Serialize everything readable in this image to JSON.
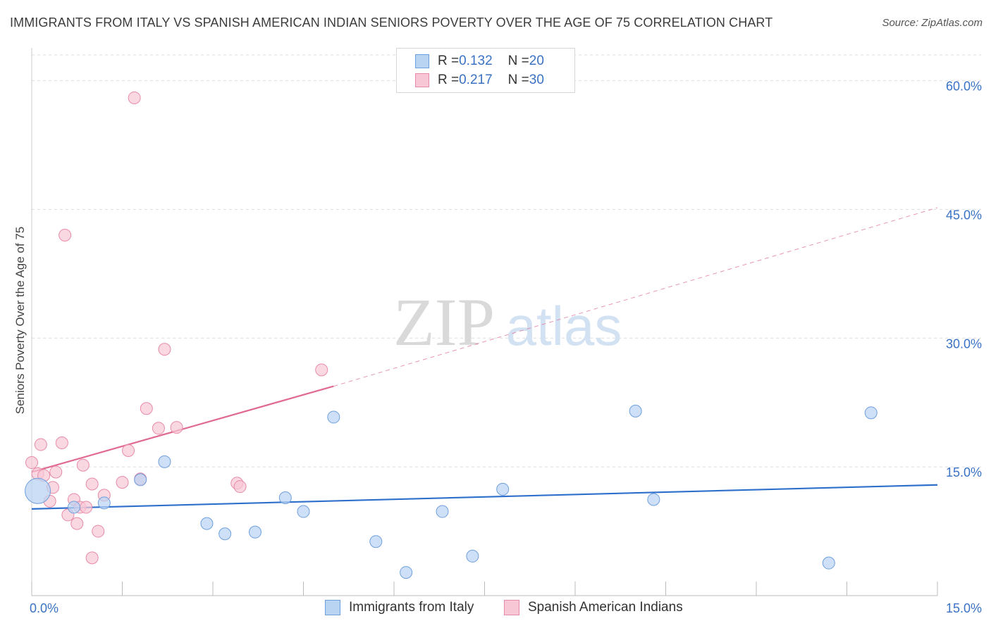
{
  "title": "IMMIGRANTS FROM ITALY VS SPANISH AMERICAN INDIAN SENIORS POVERTY OVER THE AGE OF 75 CORRELATION CHART",
  "source": "Source: ZipAtlas.com",
  "watermark": {
    "zip": "ZIP",
    "atlas": "atlas"
  },
  "legend": {
    "rows": [
      {
        "r_label": "R = ",
        "r_value": "0.132",
        "n_label": "N = ",
        "n_value": "20"
      },
      {
        "r_label": "R = ",
        "r_value": "0.217",
        "n_label": "N = ",
        "n_value": "30"
      }
    ]
  },
  "colors": {
    "blue_fill": "#b9d3f3",
    "blue_stroke": "#6f9fdc",
    "blue_line": "#2f6fcc",
    "pink_fill": "#f8c7d6",
    "pink_stroke": "#e88ba8",
    "pink_line": "#e06a92",
    "tick_label": "#3a72c4",
    "grid": "#dddddd"
  },
  "chart_data": {
    "type": "scatter",
    "title": "IMMIGRANTS FROM ITALY VS SPANISH AMERICAN INDIAN SENIORS POVERTY OVER THE AGE OF 75 CORRELATION CHART",
    "xlabel": "",
    "ylabel": "Seniors Poverty Over the Age of 75",
    "xlim": [
      0,
      15
    ],
    "ylim": [
      0,
      63
    ],
    "x_ticks": [
      0,
      15
    ],
    "x_tick_labels": [
      "0.0%",
      "15.0%"
    ],
    "y_ticks": [
      15,
      30,
      45,
      60
    ],
    "y_tick_labels": [
      "15.0%",
      "30.0%",
      "45.0%",
      "60.0%"
    ],
    "grid": true,
    "legend_position": "bottom-center",
    "series": [
      {
        "name": "Immigrants from Italy",
        "color": "#6f9fdc",
        "points": [
          [
            0.1,
            12.2,
            "large"
          ],
          [
            0.7,
            10.3
          ],
          [
            1.2,
            10.8
          ],
          [
            1.8,
            13.5
          ],
          [
            2.2,
            15.6
          ],
          [
            2.9,
            8.4
          ],
          [
            3.2,
            7.2
          ],
          [
            3.7,
            7.4
          ],
          [
            4.2,
            11.4
          ],
          [
            4.5,
            9.8
          ],
          [
            5.0,
            20.8
          ],
          [
            5.7,
            6.3
          ],
          [
            6.2,
            2.7
          ],
          [
            6.8,
            9.8
          ],
          [
            7.3,
            4.6
          ],
          [
            7.8,
            12.4
          ],
          [
            10.0,
            21.5
          ],
          [
            10.3,
            11.2
          ],
          [
            13.2,
            3.8
          ],
          [
            13.9,
            21.3
          ]
        ],
        "trend": {
          "x": [
            0,
            15
          ],
          "y": [
            10.1,
            12.9
          ]
        }
      },
      {
        "name": "Spanish American Indians",
        "color": "#e88ba8",
        "points": [
          [
            0.0,
            15.5
          ],
          [
            0.1,
            14.2
          ],
          [
            0.15,
            17.6
          ],
          [
            0.2,
            14.0
          ],
          [
            0.3,
            11.0
          ],
          [
            0.35,
            12.6
          ],
          [
            0.4,
            14.4
          ],
          [
            0.5,
            17.8
          ],
          [
            0.55,
            42.0
          ],
          [
            0.6,
            9.4
          ],
          [
            0.7,
            11.2
          ],
          [
            0.75,
            8.4
          ],
          [
            0.8,
            10.3
          ],
          [
            0.85,
            15.2
          ],
          [
            0.9,
            10.3
          ],
          [
            1.0,
            13.0
          ],
          [
            1.0,
            4.4
          ],
          [
            1.1,
            7.5
          ],
          [
            1.2,
            11.7
          ],
          [
            1.5,
            13.2
          ],
          [
            1.6,
            16.9
          ],
          [
            1.7,
            58.0
          ],
          [
            1.8,
            13.6
          ],
          [
            1.9,
            21.8
          ],
          [
            2.1,
            19.5
          ],
          [
            2.2,
            28.7
          ],
          [
            2.4,
            19.6
          ],
          [
            3.4,
            13.1
          ],
          [
            3.45,
            12.7
          ],
          [
            4.8,
            26.3
          ]
        ],
        "trend": {
          "x": [
            0,
            5
          ],
          "y": [
            14.4,
            24.4
          ]
        },
        "trend_extension": {
          "x": [
            5,
            15
          ],
          "y": [
            24.4,
            45.2
          ]
        }
      }
    ]
  }
}
